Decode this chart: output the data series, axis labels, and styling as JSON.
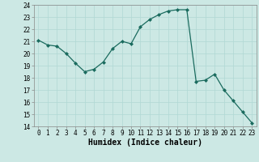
{
  "x": [
    0,
    1,
    2,
    3,
    4,
    5,
    6,
    7,
    8,
    9,
    10,
    11,
    12,
    13,
    14,
    15,
    16,
    17,
    18,
    19,
    20,
    21,
    22,
    23
  ],
  "y": [
    21.1,
    20.7,
    20.6,
    20.0,
    19.2,
    18.5,
    18.7,
    19.3,
    20.4,
    21.0,
    20.8,
    22.2,
    22.8,
    23.2,
    23.5,
    23.6,
    23.6,
    17.7,
    17.8,
    18.3,
    17.0,
    16.1,
    15.2,
    14.3
  ],
  "line_color": "#1a6b5e",
  "marker": "D",
  "marker_size": 2,
  "bg_color": "#cce8e4",
  "grid_color": "#b0d8d4",
  "xlabel": "Humidex (Indice chaleur)",
  "xlim": [
    -0.5,
    23.5
  ],
  "ylim": [
    14,
    24
  ],
  "yticks": [
    14,
    15,
    16,
    17,
    18,
    19,
    20,
    21,
    22,
    23,
    24
  ],
  "xticks": [
    0,
    1,
    2,
    3,
    4,
    5,
    6,
    7,
    8,
    9,
    10,
    11,
    12,
    13,
    14,
    15,
    16,
    17,
    18,
    19,
    20,
    21,
    22,
    23
  ],
  "tick_fontsize": 5.5,
  "xlabel_fontsize": 7.0,
  "linewidth": 0.9
}
